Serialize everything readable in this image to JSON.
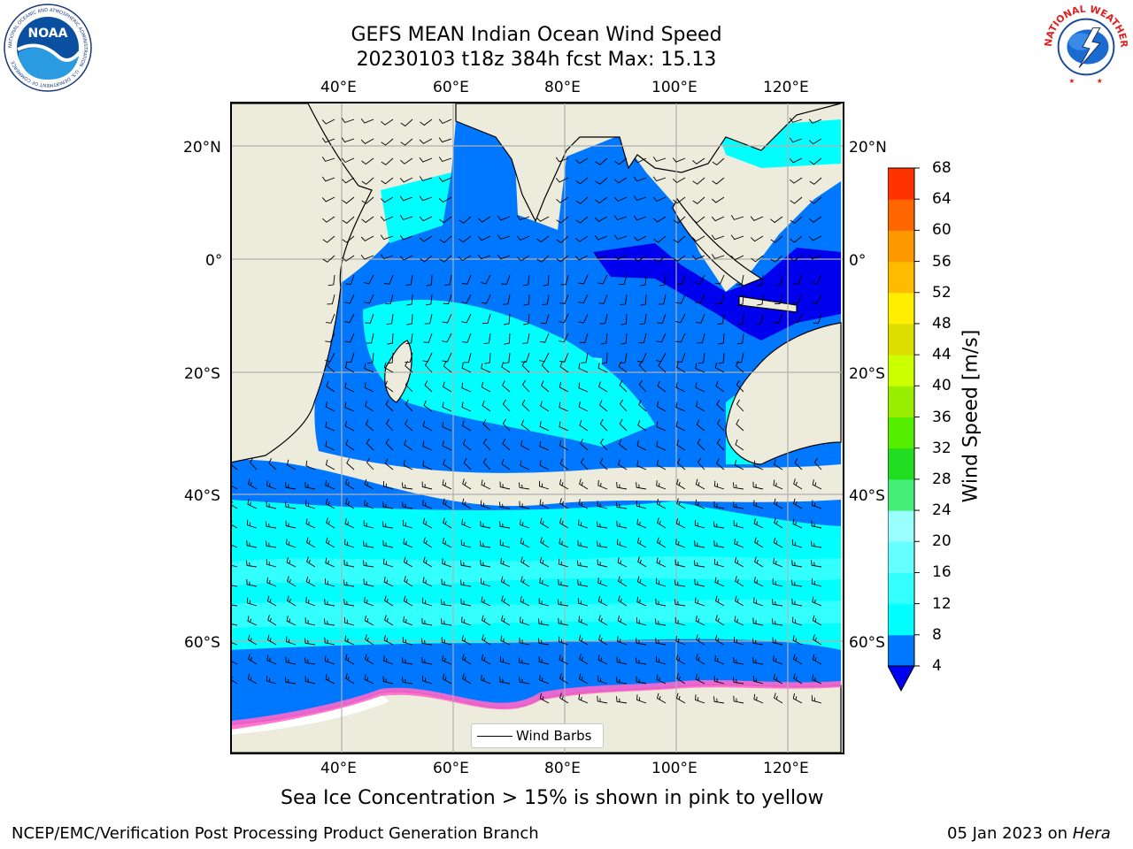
{
  "header": {
    "title_line1": "GEFS MEAN Indian Ocean Wind Speed",
    "title_line2": "20230103 t18z 384h fcst   Max: 15.13"
  },
  "logos": {
    "noaa_text": "NOAA",
    "noaa_ring_text": "NATIONAL OCEANIC AND ATMOSPHERIC ADMINISTRATION · U.S. DEPARTMENT OF COMMERCE",
    "nws_ring_text": "NATIONAL WEATHER SERVICE"
  },
  "map": {
    "lon_ticks": [
      "40°E",
      "60°E",
      "80°E",
      "100°E",
      "120°E"
    ],
    "lat_ticks": [
      "20°N",
      "0°",
      "20°S",
      "40°S",
      "60°S"
    ],
    "legend_label": "Wind Barbs",
    "colors": {
      "land": "#ecebdc",
      "ice_edge": "#ff66cc",
      "ice_core": "#ffffff"
    }
  },
  "colorbar": {
    "label": "Wind Speed [m/s]",
    "ticks": [
      "4",
      "8",
      "12",
      "16",
      "20",
      "24",
      "28",
      "32",
      "36",
      "40",
      "44",
      "48",
      "52",
      "56",
      "60",
      "64",
      "68"
    ],
    "colors": [
      "#0077ff",
      "#00ffff",
      "#33ffff",
      "#66ffff",
      "#99ffff",
      "#44ee77",
      "#22dd22",
      "#55ee00",
      "#99ee00",
      "#ccff00",
      "#dddd00",
      "#ffee00",
      "#ffbb00",
      "#ff9900",
      "#ff6600",
      "#ff3300",
      "#ff0000"
    ],
    "under_color": "#0000ee"
  },
  "caption": "Sea Ice Concentration > 15% is shown in pink to yellow",
  "footer": {
    "left": "NCEP/EMC/Verification Post Processing Product Generation Branch",
    "right_date": "05 Jan 2023 on ",
    "right_host": "Hera"
  }
}
